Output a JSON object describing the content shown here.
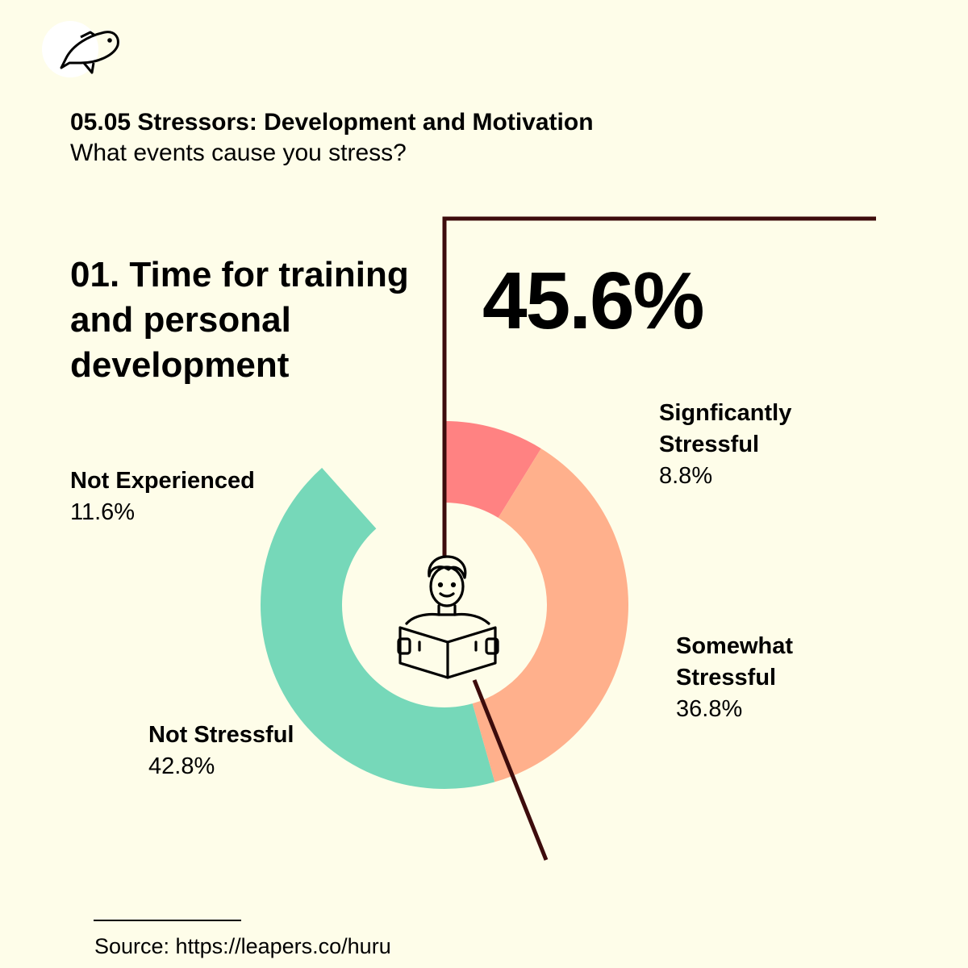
{
  "header": {
    "title": "05.05 Stressors: Development and Motivation",
    "subtitle": "What events cause you stress?"
  },
  "item": {
    "title": "01. Time for training and personal development",
    "highlight_value": "45.6%"
  },
  "source": "Source: https://leapers.co/huru",
  "icons": {
    "logo": "fish-icon",
    "center": "person-reading-book-icon"
  },
  "colors": {
    "background": "#fefde9",
    "significantly_stressful": "#ff8282",
    "somewhat_stressful": "#ffb08c",
    "not_stressful": "#76d8b9",
    "not_experienced": "#fefde9",
    "accent_line": "#3d0c0c"
  },
  "chart_data": {
    "type": "pie",
    "variant": "donut",
    "title": "01. Time for training and personal development",
    "series": [
      {
        "name": "Signficantly Stressful",
        "value": 8.8,
        "label": "8.8%",
        "color": "#ff8282"
      },
      {
        "name": "Somewhat Stressful",
        "value": 36.8,
        "label": "36.8%",
        "color": "#ffb08c"
      },
      {
        "name": "Not Stressful",
        "value": 42.8,
        "label": "42.8%",
        "color": "#76d8b9"
      },
      {
        "name": "Not Experienced",
        "value": 11.6,
        "label": "11.6%",
        "color": "#fefde9"
      }
    ],
    "stressful_total": "45.6%",
    "start_angle": "top, clockwise"
  }
}
